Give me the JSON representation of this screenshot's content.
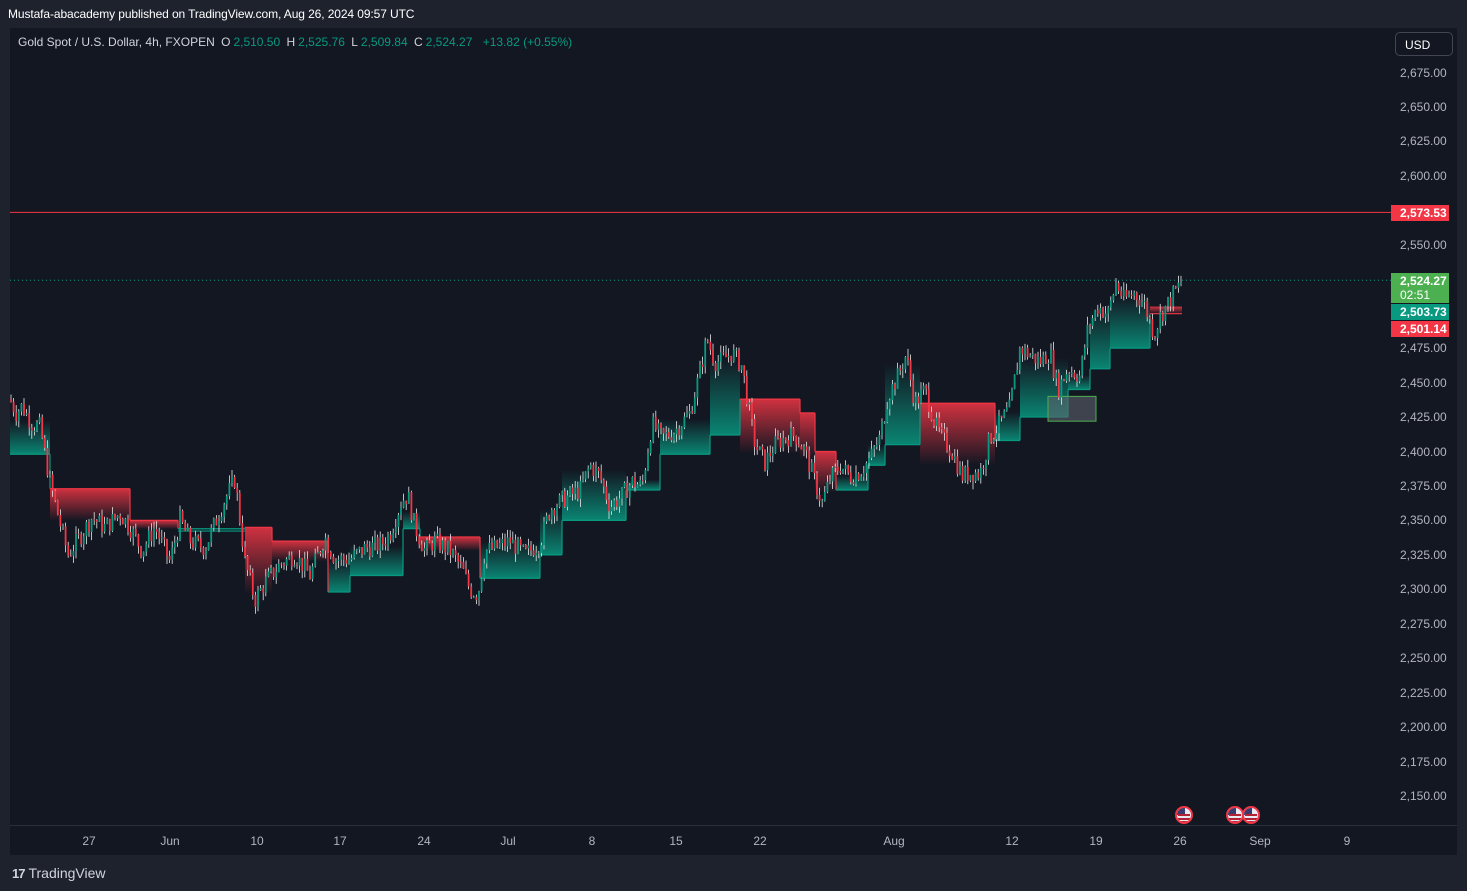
{
  "header": {
    "published_text": "Mustafa-abacademy published on TradingView.com, Aug 26, 2024 09:57 UTC"
  },
  "legend": {
    "symbol": "Gold Spot / U.S. Dollar, 4h, FXOPEN",
    "open_key": "O",
    "open": "2,510.50",
    "high_key": "H",
    "high": "2,525.76",
    "low_key": "L",
    "low": "2,509.84",
    "close_key": "C",
    "close": "2,524.27",
    "change": "+13.82 (+0.55%)"
  },
  "currency_button": "USD",
  "y_axis": {
    "labels": [
      "2,675.00",
      "2,650.00",
      "2,625.00",
      "2,600.00",
      "2,550.00",
      "2,475.00",
      "2,450.00",
      "2,425.00",
      "2,400.00",
      "2,375.00",
      "2,350.00",
      "2,325.00",
      "2,300.00",
      "2,275.00",
      "2,250.00",
      "2,225.00",
      "2,200.00",
      "2,175.00",
      "2,150.00"
    ],
    "range": [
      2135,
      2690
    ]
  },
  "price_boxes": {
    "resistance": {
      "value": "2,573.53",
      "color": "#f23645"
    },
    "last_price": {
      "value": "2,524.27",
      "countdown": "02:51",
      "color": "#4caf50"
    },
    "trail_up": {
      "value": "2,503.73",
      "color": "#089981"
    },
    "trail_down": {
      "value": "2,501.14",
      "color": "#f23645"
    }
  },
  "x_axis": {
    "labels": [
      "27",
      "Jun",
      "10",
      "17",
      "24",
      "Jul",
      "8",
      "15",
      "22",
      "Aug",
      "12",
      "19",
      "26",
      "Sep",
      "9"
    ]
  },
  "events": {
    "icon": "us-flag-icon"
  },
  "footer": {
    "brand": "TradingView"
  },
  "chart_data": {
    "type": "candlestick",
    "title": "Gold Spot / U.S. Dollar, 4h, FXOPEN",
    "ylim": [
      2135,
      2690
    ],
    "colors": {
      "up": "#089981",
      "down": "#f23645",
      "wick": "#ffffff"
    },
    "horizontal_lines": [
      {
        "value": 2573.53,
        "color": "#f23645",
        "style": "solid"
      },
      {
        "value": 2524.27,
        "color": "#089981",
        "style": "dotted"
      }
    ],
    "price_path": [
      [
        0,
        2438
      ],
      [
        6,
        2428
      ],
      [
        12,
        2433
      ],
      [
        22,
        2420
      ],
      [
        30,
        2418
      ],
      [
        40,
        2378
      ],
      [
        50,
        2348
      ],
      [
        58,
        2325
      ],
      [
        70,
        2338
      ],
      [
        82,
        2352
      ],
      [
        95,
        2345
      ],
      [
        110,
        2355
      ],
      [
        120,
        2345
      ],
      [
        132,
        2328
      ],
      [
        145,
        2345
      ],
      [
        160,
        2320
      ],
      [
        170,
        2350
      ],
      [
        180,
        2335
      ],
      [
        195,
        2330
      ],
      [
        205,
        2348
      ],
      [
        215,
        2365
      ],
      [
        225,
        2380
      ],
      [
        235,
        2320
      ],
      [
        245,
        2292
      ],
      [
        255,
        2305
      ],
      [
        270,
        2318
      ],
      [
        285,
        2325
      ],
      [
        300,
        2310
      ],
      [
        315,
        2338
      ],
      [
        325,
        2322
      ],
      [
        340,
        2322
      ],
      [
        355,
        2330
      ],
      [
        370,
        2332
      ],
      [
        380,
        2340
      ],
      [
        392,
        2365
      ],
      [
        398,
        2368
      ],
      [
        405,
        2345
      ],
      [
        415,
        2328
      ],
      [
        425,
        2335
      ],
      [
        440,
        2328
      ],
      [
        452,
        2315
      ],
      [
        460,
        2300
      ],
      [
        468,
        2296
      ],
      [
        475,
        2328
      ],
      [
        485,
        2330
      ],
      [
        500,
        2335
      ],
      [
        515,
        2325
      ],
      [
        530,
        2334
      ],
      [
        540,
        2358
      ],
      [
        555,
        2366
      ],
      [
        570,
        2372
      ],
      [
        580,
        2390
      ],
      [
        590,
        2382
      ],
      [
        600,
        2360
      ],
      [
        612,
        2368
      ],
      [
        622,
        2378
      ],
      [
        632,
        2375
      ],
      [
        642,
        2420
      ],
      [
        652,
        2410
      ],
      [
        665,
        2415
      ],
      [
        680,
        2428
      ],
      [
        690,
        2458
      ],
      [
        697,
        2482
      ],
      [
        705,
        2465
      ],
      [
        712,
        2466
      ],
      [
        722,
        2472
      ],
      [
        732,
        2462
      ],
      [
        738,
        2435
      ],
      [
        745,
        2405
      ],
      [
        755,
        2392
      ],
      [
        765,
        2405
      ],
      [
        775,
        2410
      ],
      [
        785,
        2412
      ],
      [
        795,
        2400
      ],
      [
        805,
        2378
      ],
      [
        812,
        2362
      ],
      [
        820,
        2380
      ],
      [
        830,
        2390
      ],
      [
        840,
        2382
      ],
      [
        850,
        2385
      ],
      [
        860,
        2395
      ],
      [
        870,
        2410
      ],
      [
        878,
        2440
      ],
      [
        888,
        2455
      ],
      [
        896,
        2470
      ],
      [
        905,
        2435
      ],
      [
        915,
        2445
      ],
      [
        925,
        2420
      ],
      [
        932,
        2410
      ],
      [
        942,
        2400
      ],
      [
        952,
        2382
      ],
      [
        962,
        2385
      ],
      [
        970,
        2384
      ],
      [
        980,
        2410
      ],
      [
        990,
        2420
      ],
      [
        1000,
        2432
      ],
      [
        1010,
        2475
      ],
      [
        1020,
        2470
      ],
      [
        1030,
        2465
      ],
      [
        1040,
        2472
      ],
      [
        1048,
        2445
      ],
      [
        1058,
        2460
      ],
      [
        1070,
        2455
      ],
      [
        1078,
        2490
      ],
      [
        1088,
        2505
      ],
      [
        1098,
        2500
      ],
      [
        1106,
        2522
      ],
      [
        1114,
        2510
      ],
      [
        1124,
        2515
      ],
      [
        1134,
        2508
      ],
      [
        1144,
        2485
      ],
      [
        1150,
        2498
      ],
      [
        1160,
        2510
      ],
      [
        1172,
        2524
      ]
    ],
    "trail_steps": [
      [
        0,
        2398,
        "up"
      ],
      [
        40,
        2398,
        "up"
      ],
      [
        40,
        2373,
        "down"
      ],
      [
        120,
        2373,
        "down"
      ],
      [
        120,
        2350,
        "down"
      ],
      [
        168,
        2350,
        "down"
      ],
      [
        168,
        2344,
        "up"
      ],
      [
        235,
        2344,
        "up"
      ],
      [
        235,
        2345,
        "down"
      ],
      [
        262,
        2345,
        "down"
      ],
      [
        262,
        2335,
        "down"
      ],
      [
        318,
        2335,
        "down"
      ],
      [
        318,
        2298,
        "up"
      ],
      [
        340,
        2298,
        "up"
      ],
      [
        340,
        2310,
        "up"
      ],
      [
        393,
        2310,
        "up"
      ],
      [
        393,
        2344,
        "up"
      ],
      [
        410,
        2344,
        "up"
      ],
      [
        410,
        2338,
        "down"
      ],
      [
        470,
        2338,
        "down"
      ],
      [
        470,
        2308,
        "up"
      ],
      [
        530,
        2308,
        "up"
      ],
      [
        530,
        2325,
        "up"
      ],
      [
        552,
        2325,
        "up"
      ],
      [
        552,
        2350,
        "up"
      ],
      [
        616,
        2350,
        "up"
      ],
      [
        616,
        2372,
        "up"
      ],
      [
        650,
        2372,
        "up"
      ],
      [
        650,
        2398,
        "up"
      ],
      [
        700,
        2398,
        "up"
      ],
      [
        700,
        2412,
        "up"
      ],
      [
        730,
        2412,
        "up"
      ],
      [
        730,
        2438,
        "down"
      ],
      [
        790,
        2438,
        "down"
      ],
      [
        790,
        2428,
        "down"
      ],
      [
        805,
        2428,
        "down"
      ],
      [
        805,
        2400,
        "down"
      ],
      [
        826,
        2400,
        "down"
      ],
      [
        826,
        2372,
        "up"
      ],
      [
        858,
        2372,
        "up"
      ],
      [
        858,
        2390,
        "up"
      ],
      [
        875,
        2390,
        "up"
      ],
      [
        875,
        2405,
        "up"
      ],
      [
        910,
        2405,
        "up"
      ],
      [
        910,
        2435,
        "down"
      ],
      [
        985,
        2435,
        "down"
      ],
      [
        985,
        2408,
        "up"
      ],
      [
        1010,
        2408,
        "up"
      ],
      [
        1010,
        2425,
        "up"
      ],
      [
        1058,
        2425,
        "up"
      ],
      [
        1058,
        2445,
        "up"
      ],
      [
        1080,
        2445,
        "up"
      ],
      [
        1080,
        2460,
        "up"
      ],
      [
        1100,
        2460,
        "up"
      ],
      [
        1100,
        2475,
        "up"
      ],
      [
        1140,
        2475,
        "up"
      ],
      [
        1140,
        2500,
        "down"
      ],
      [
        1172,
        2500,
        "down"
      ]
    ],
    "zones": [
      {
        "x0": 1038,
        "x1": 1086,
        "top": 2440,
        "bottom": 2422,
        "fill": "#5d606b",
        "border": "#4caf50"
      }
    ]
  }
}
